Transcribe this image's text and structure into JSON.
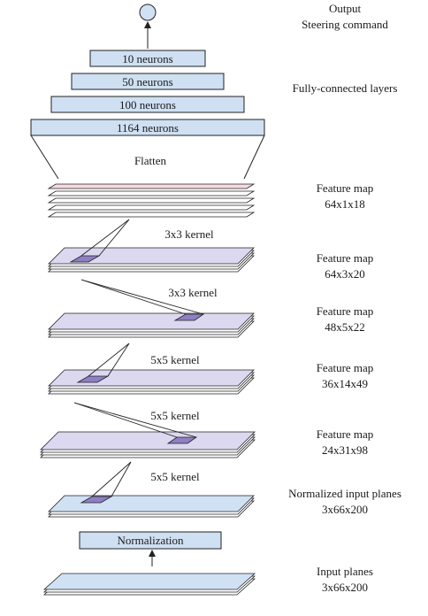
{
  "output": {
    "title": "Output",
    "subtitle": "Steering command"
  },
  "fully_connected": {
    "label": "Fully-connected layers",
    "layers": [
      "10 neurons",
      "50 neurons",
      "100 neurons",
      "1164 neurons"
    ]
  },
  "flatten": "Flatten",
  "feature_maps": [
    {
      "title": "Feature map",
      "dims": "64x1x18"
    },
    {
      "title": "Feature map",
      "dims": "64x3x20"
    },
    {
      "title": "Feature map",
      "dims": "48x5x22"
    },
    {
      "title": "Feature map",
      "dims": "36x14x49"
    },
    {
      "title": "Feature map",
      "dims": "24x31x98"
    }
  ],
  "kernels": [
    "3x3 kernel",
    "3x3 kernel",
    "5x5 kernel",
    "5x5 kernel",
    "5x5 kernel"
  ],
  "normalized_input": {
    "title": "Normalized input planes",
    "dims": "3x66x200"
  },
  "normalization": "Normalization",
  "input": {
    "title": "Input planes",
    "dims": "3x66x200"
  },
  "colors": {
    "box_fill": "#cfe0f3",
    "plane_top": "#d8dcef",
    "plane_fill": "#ffffff",
    "conv_plane": "#dcd8f0",
    "input_plane": "#d0e1f4",
    "flat_top": "#f6dbe0",
    "kernel_fill": "#8f7fc4",
    "stroke": "#222222"
  }
}
